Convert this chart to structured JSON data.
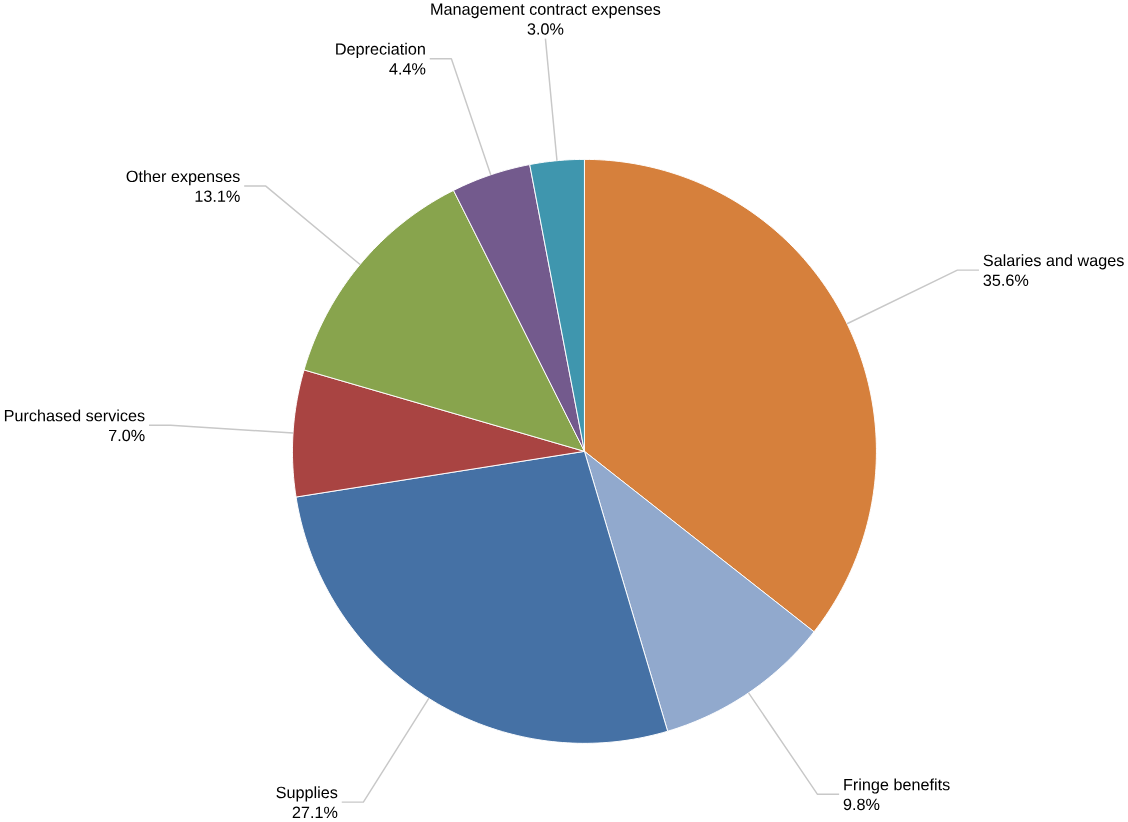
{
  "chart_data": {
    "type": "pie",
    "categories": [
      "Salaries and wages",
      "Fringe benefits",
      "Supplies",
      "Purchased services",
      "Other expenses",
      "Depreciation",
      "Management contract expenses"
    ],
    "values": [
      35.6,
      9.8,
      27.1,
      7.0,
      13.1,
      4.4,
      3.0
    ],
    "value_labels": [
      "35.6%",
      "9.8%",
      "27.1%",
      "7.0%",
      "13.1%",
      "4.4%",
      "3.0%"
    ],
    "colors": [
      "#d6803c",
      "#91a9cd",
      "#4571a5",
      "#a94442",
      "#88a44d",
      "#735a8d",
      "#3f96ae"
    ]
  }
}
